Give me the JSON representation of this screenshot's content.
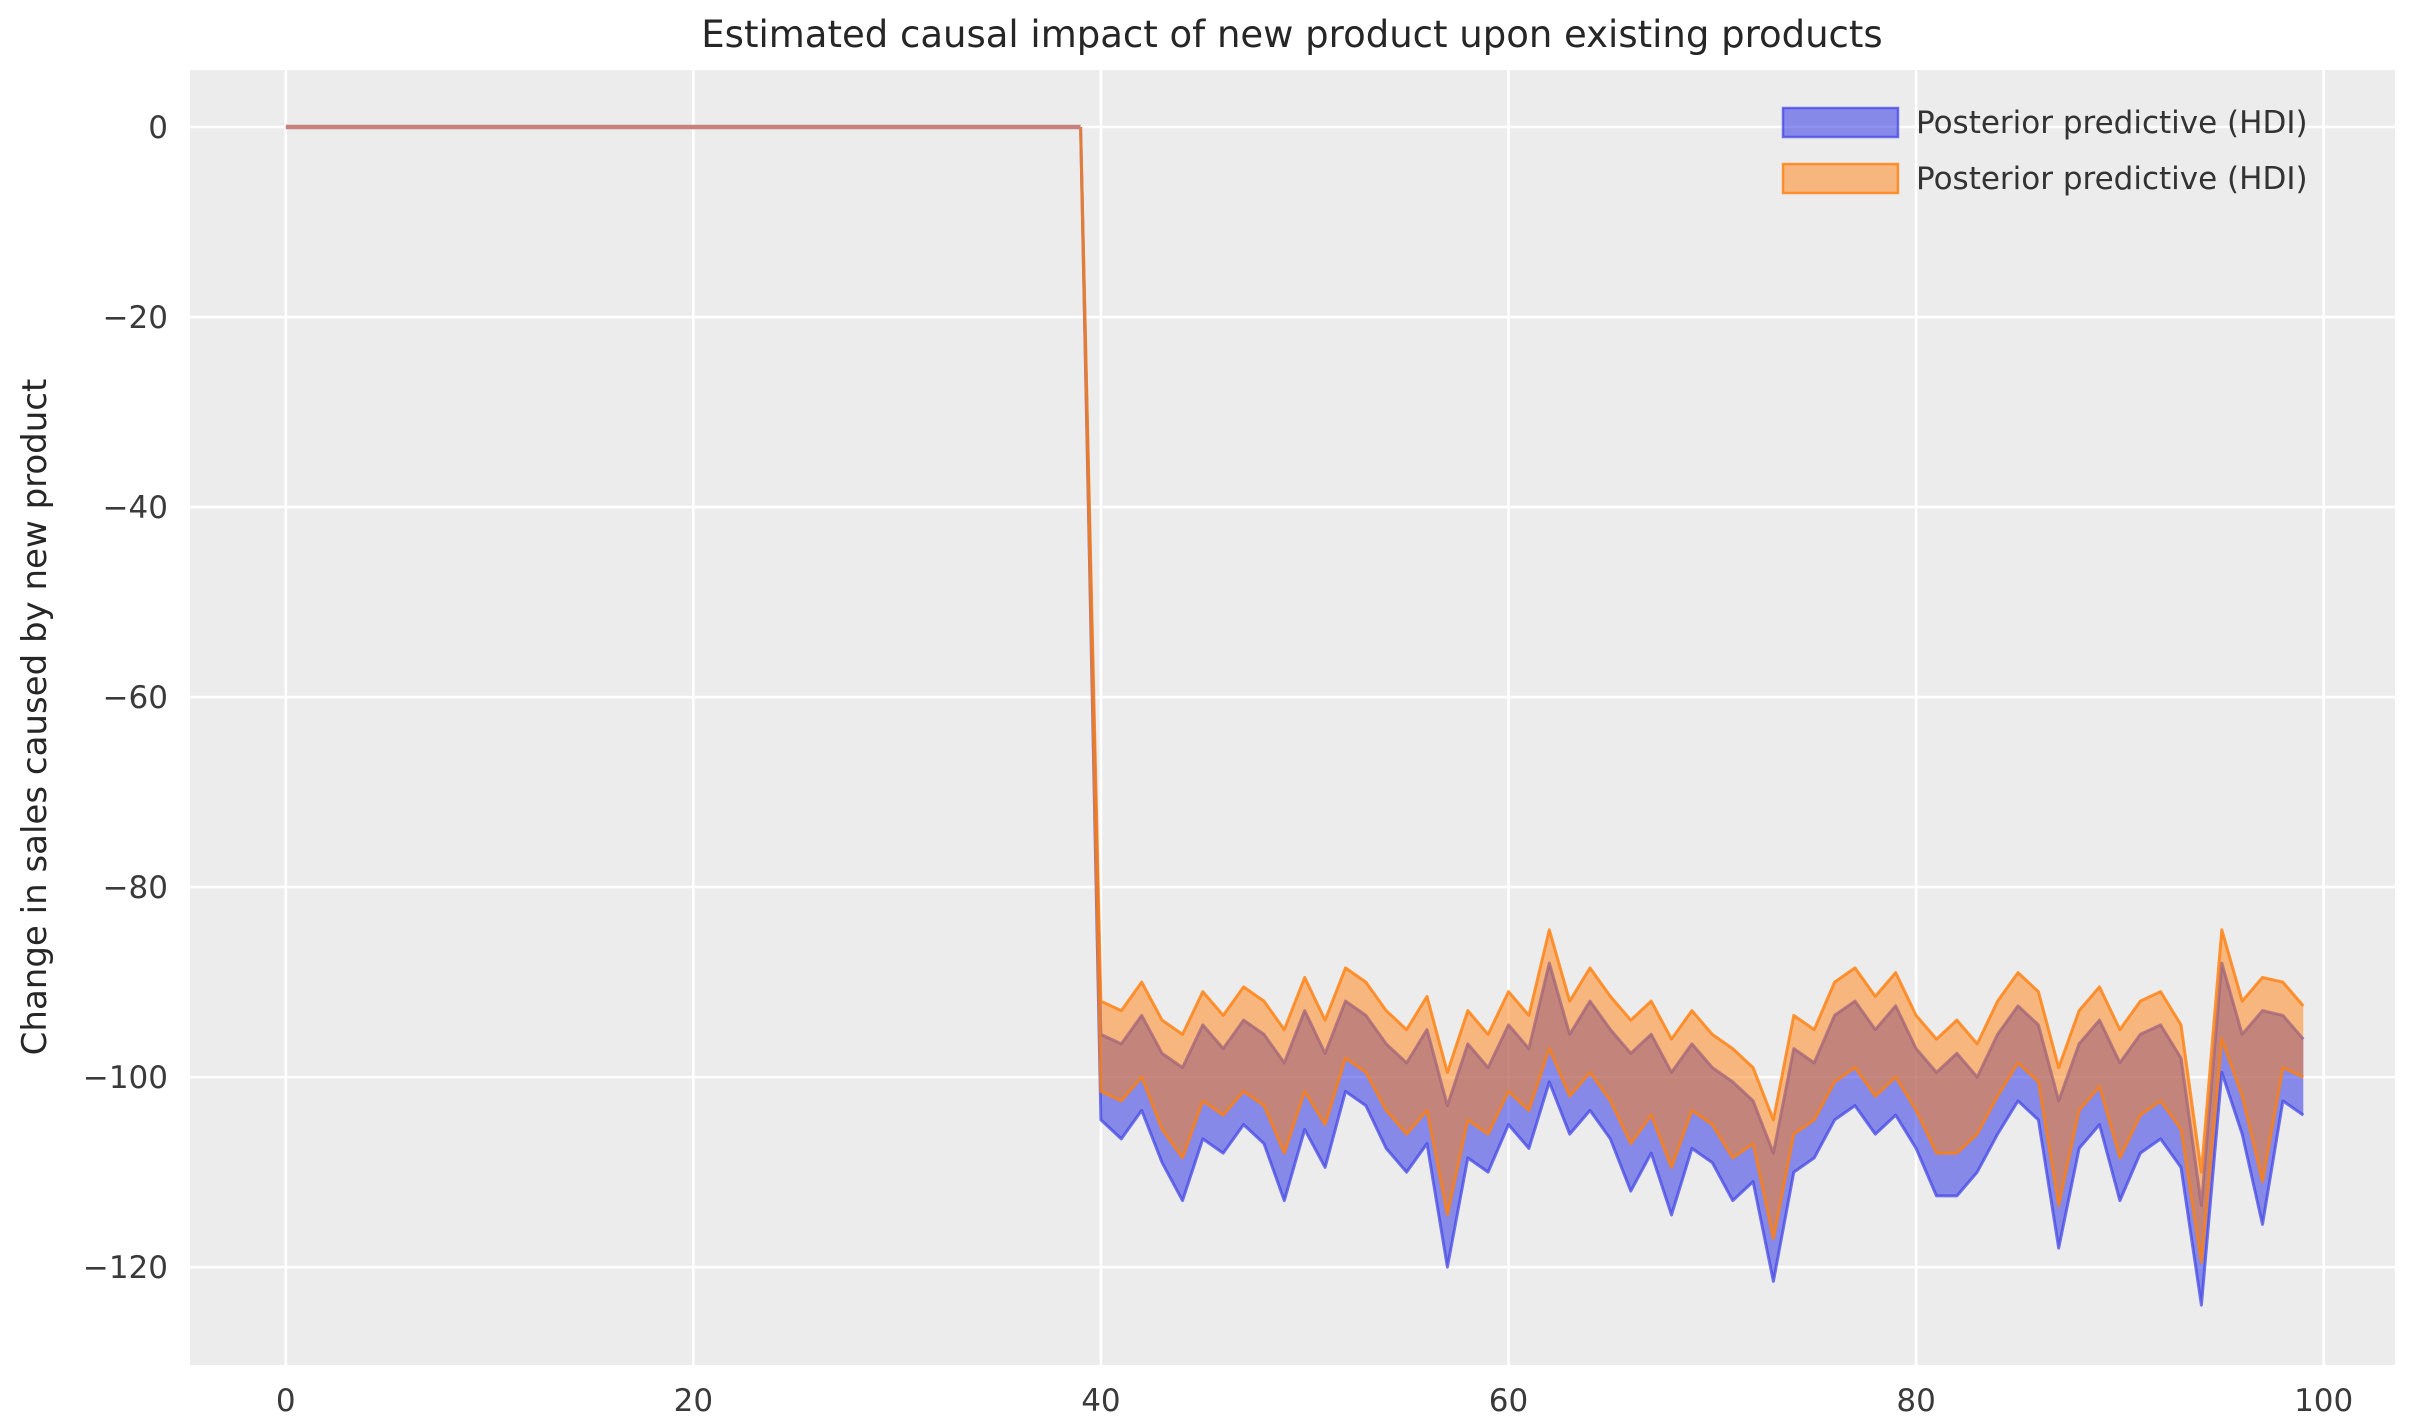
{
  "chart_data": {
    "type": "area",
    "title": "Estimated causal impact of new product upon existing products",
    "ylabel": "Change in sales caused by new product",
    "xlabel": "",
    "grid": true,
    "legend_position": "upper right",
    "xlim": [
      -4.7,
      103.5
    ],
    "ylim": [
      -130.3,
      6.0
    ],
    "x_ticks": [
      0,
      20,
      40,
      60,
      80,
      100
    ],
    "x_tick_labels": [
      "0",
      "20",
      "40",
      "60",
      "80",
      "100"
    ],
    "y_ticks": [
      0,
      -20,
      -40,
      -60,
      -80,
      -100,
      -120
    ],
    "y_tick_labels": [
      "0",
      "−20",
      "−40",
      "−60",
      "−80",
      "−100",
      "−120"
    ],
    "legend": [
      {
        "label": "Posterior predictive (HDI)",
        "series": "blue_hdi"
      },
      {
        "label": "Posterior predictive (HDI)",
        "series": "orange_hdi"
      }
    ],
    "pre_period_line": {
      "x": [
        0,
        39
      ],
      "y": [
        0,
        0
      ]
    },
    "series": {
      "x": [
        39,
        40,
        41,
        42,
        43,
        44,
        45,
        46,
        47,
        48,
        49,
        50,
        51,
        52,
        53,
        54,
        55,
        56,
        57,
        58,
        59,
        60,
        61,
        62,
        63,
        64,
        65,
        66,
        67,
        68,
        69,
        70,
        71,
        72,
        73,
        74,
        75,
        76,
        77,
        78,
        79,
        80,
        81,
        82,
        83,
        84,
        85,
        86,
        87,
        88,
        89,
        90,
        91,
        92,
        93,
        94,
        95,
        96,
        97,
        98,
        99
      ],
      "orange_hdi_upper": [
        0,
        -92,
        -93,
        -90,
        -94,
        -95.5,
        -91,
        -93.5,
        -90.5,
        -92,
        -95,
        -89.5,
        -94,
        -88.5,
        -90,
        -93,
        -95,
        -91.5,
        -99.5,
        -93,
        -95.5,
        -91,
        -93.5,
        -84.5,
        -92,
        -88.5,
        -91.5,
        -94,
        -92,
        -96,
        -93,
        -95.5,
        -97,
        -99,
        -104.5,
        -93.5,
        -95,
        -90,
        -88.5,
        -91.5,
        -89,
        -93.5,
        -96,
        -94,
        -96.5,
        -92,
        -89,
        -91,
        -99,
        -93,
        -90.5,
        -95,
        -92,
        -91,
        -94.5,
        -110,
        -84.5,
        -92,
        -89.5,
        -90,
        -92.5
      ],
      "orange_hdi_lower": [
        0,
        -101.5,
        -102.5,
        -100,
        -105.5,
        -108.5,
        -102.5,
        -104,
        -101.5,
        -103,
        -108,
        -101.5,
        -105,
        -98,
        -99.5,
        -103.5,
        -106,
        -103.5,
        -114.5,
        -104.5,
        -106,
        -101.5,
        -103.5,
        -97,
        -102,
        -99.5,
        -102.5,
        -107,
        -104,
        -109.5,
        -103.5,
        -105,
        -108.5,
        -107,
        -117,
        -106,
        -104.5,
        -100.5,
        -99,
        -102,
        -100,
        -103.5,
        -108,
        -108,
        -106,
        -102,
        -98.5,
        -100.5,
        -113.5,
        -103.5,
        -101,
        -108.5,
        -104,
        -102.5,
        -105.5,
        -119.5,
        -96,
        -102,
        -111,
        -99,
        -100
      ],
      "blue_hdi_upper": [
        0,
        -95.5,
        -96.5,
        -93.5,
        -97.5,
        -99,
        -94.5,
        -97,
        -94,
        -95.5,
        -98.5,
        -93,
        -97.5,
        -92,
        -93.5,
        -96.5,
        -98.5,
        -95,
        -103,
        -96.5,
        -99,
        -94.5,
        -97,
        -88,
        -95.5,
        -92,
        -95,
        -97.5,
        -95.5,
        -99.5,
        -96.5,
        -99,
        -100.5,
        -102.5,
        -108,
        -97,
        -98.5,
        -93.5,
        -92,
        -95,
        -92.5,
        -97,
        -99.5,
        -97.5,
        -100,
        -95.5,
        -92.5,
        -94.5,
        -102.5,
        -96.5,
        -94,
        -98.5,
        -95.5,
        -94.5,
        -98,
        -113.5,
        -88,
        -95.5,
        -93,
        -93.5,
        -96
      ],
      "blue_hdi_lower": [
        0,
        -104.5,
        -106.5,
        -103.5,
        -109,
        -113,
        -106.5,
        -108,
        -105,
        -107,
        -113,
        -105.5,
        -109.5,
        -101.5,
        -103,
        -107.5,
        -110,
        -107,
        -120,
        -108.5,
        -110,
        -105,
        -107.5,
        -100.5,
        -106,
        -103.5,
        -106.5,
        -112,
        -108,
        -114.5,
        -107.5,
        -109,
        -113,
        -111,
        -121.5,
        -110,
        -108.5,
        -104.5,
        -103,
        -106,
        -104,
        -107.5,
        -112.5,
        -112.5,
        -110,
        -106,
        -102.5,
        -104.5,
        -118,
        -107.5,
        -105,
        -113,
        -108,
        -106.5,
        -109.5,
        -124,
        -99.5,
        -106,
        -115.5,
        -102.5,
        -104
      ]
    },
    "colors": {
      "figure_bg": "#ffffff",
      "axes_bg": "#ececec",
      "grid": "#ffffff",
      "blue": "#4448e6",
      "orange": "#ff7f0e",
      "pre_line": "#c9817f",
      "title_text": "#262626",
      "tick_text": "#3a3a3a"
    }
  }
}
